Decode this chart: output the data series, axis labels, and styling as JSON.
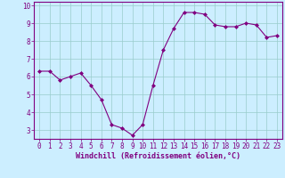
{
  "x": [
    0,
    1,
    2,
    3,
    4,
    5,
    6,
    7,
    8,
    9,
    10,
    11,
    12,
    13,
    14,
    15,
    16,
    17,
    18,
    19,
    20,
    21,
    22,
    23
  ],
  "y": [
    6.3,
    6.3,
    5.8,
    6.0,
    6.2,
    5.5,
    4.7,
    3.3,
    3.1,
    2.7,
    3.3,
    5.5,
    7.5,
    8.7,
    9.6,
    9.6,
    9.5,
    8.9,
    8.8,
    8.8,
    9.0,
    8.9,
    8.2,
    8.3
  ],
  "xlabel": "Windchill (Refroidissement éolien,°C)",
  "line_color": "#800080",
  "marker_color": "#800080",
  "background_color": "#cceeff",
  "grid_color": "#99cccc",
  "ylim": [
    2.5,
    10.2
  ],
  "xlim": [
    -0.5,
    23.5
  ],
  "yticks": [
    3,
    4,
    5,
    6,
    7,
    8,
    9,
    10
  ],
  "xticks": [
    0,
    1,
    2,
    3,
    4,
    5,
    6,
    7,
    8,
    9,
    10,
    11,
    12,
    13,
    14,
    15,
    16,
    17,
    18,
    19,
    20,
    21,
    22,
    23
  ],
  "tick_fontsize": 5.5,
  "xlabel_fontsize": 6,
  "spine_color": "#800080"
}
